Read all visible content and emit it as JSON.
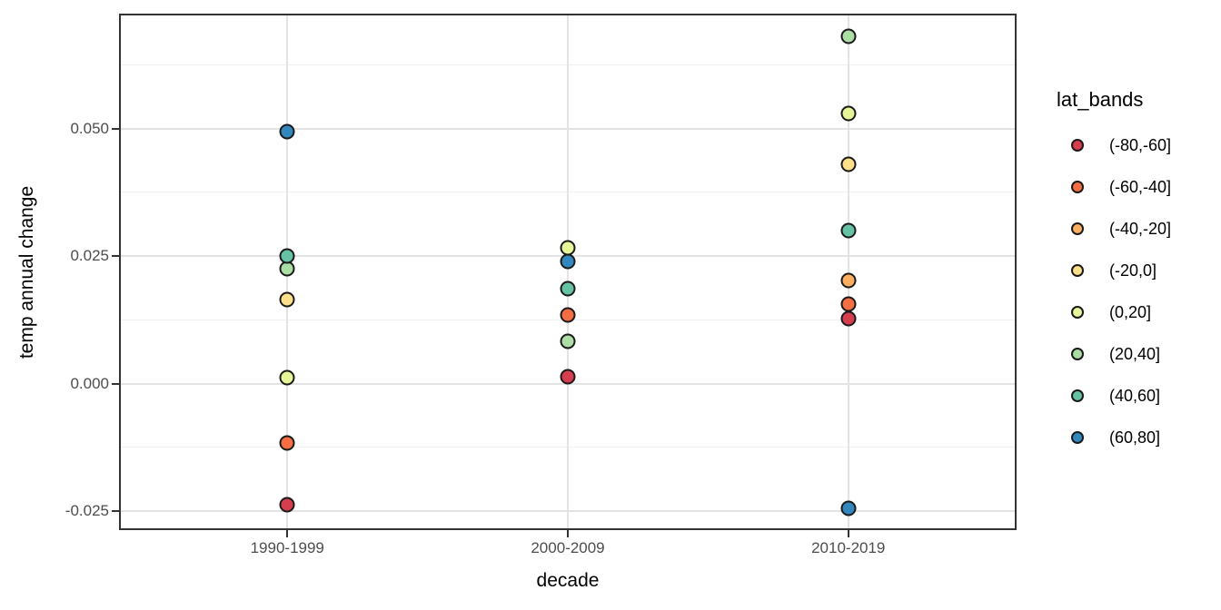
{
  "chart_data": {
    "type": "scatter",
    "title": "",
    "xlabel": "decade",
    "ylabel": "temp annual change",
    "categories": [
      "1990-1999",
      "2000-2009",
      "2010-2019"
    ],
    "y_ticks": [
      {
        "value": 0.05,
        "label": "0.050"
      },
      {
        "value": 0.025,
        "label": "0.025"
      },
      {
        "value": 0.0,
        "label": "0.000"
      },
      {
        "value": -0.025,
        "label": "-0.025"
      }
    ],
    "y_minor_ticks": [
      0.0625,
      0.0375,
      0.0125,
      -0.0125
    ],
    "ylim": [
      -0.0287,
      0.0725
    ],
    "grid": true,
    "legend_position": "right",
    "legend_title": "lat_bands",
    "point_outline_color": "#1a1a1a",
    "series": [
      {
        "name": "(-80,-60]",
        "color": "#d53e4f",
        "points": [
          [
            "1990-1999",
            -0.0238
          ],
          [
            "2000-2009",
            0.0014
          ],
          [
            "2010-2019",
            0.0128
          ]
        ]
      },
      {
        "name": "(-60,-40]",
        "color": "#f46d43",
        "points": [
          [
            "1990-1999",
            -0.0117
          ],
          [
            "2000-2009",
            0.0135
          ],
          [
            "2010-2019",
            0.0155
          ]
        ]
      },
      {
        "name": "(-40,-20]",
        "color": "#fdae61",
        "points": [
          [
            "2010-2019",
            0.0202
          ]
        ]
      },
      {
        "name": "(-20,0]",
        "color": "#fee08b",
        "points": [
          [
            "1990-1999",
            0.0165
          ],
          [
            "2010-2019",
            0.0429
          ]
        ]
      },
      {
        "name": "(0,20]",
        "color": "#e6f598",
        "points": [
          [
            "1990-1999",
            0.0012
          ],
          [
            "2000-2009",
            0.0267
          ],
          [
            "2010-2019",
            0.0529
          ]
        ]
      },
      {
        "name": "(20,40]",
        "color": "#abdda4",
        "points": [
          [
            "1990-1999",
            0.0225
          ],
          [
            "2000-2009",
            0.0083
          ],
          [
            "2010-2019",
            0.068
          ]
        ]
      },
      {
        "name": "(40,60]",
        "color": "#66c2a5",
        "points": [
          [
            "1990-1999",
            0.025
          ],
          [
            "2000-2009",
            0.0186
          ],
          [
            "2010-2019",
            0.03
          ]
        ]
      },
      {
        "name": "(60,80]",
        "color": "#3288bd",
        "points": [
          [
            "1990-1999",
            0.0494
          ],
          [
            "2000-2009",
            0.0239
          ],
          [
            "2010-2019",
            -0.0245
          ]
        ]
      }
    ],
    "colors": {
      "grid_major": "#e3e3e3",
      "grid_minor": "#f0f0f0",
      "panel_border": "#333333",
      "tick_label": "#4d4d4d",
      "axis_title": "#000000"
    }
  }
}
